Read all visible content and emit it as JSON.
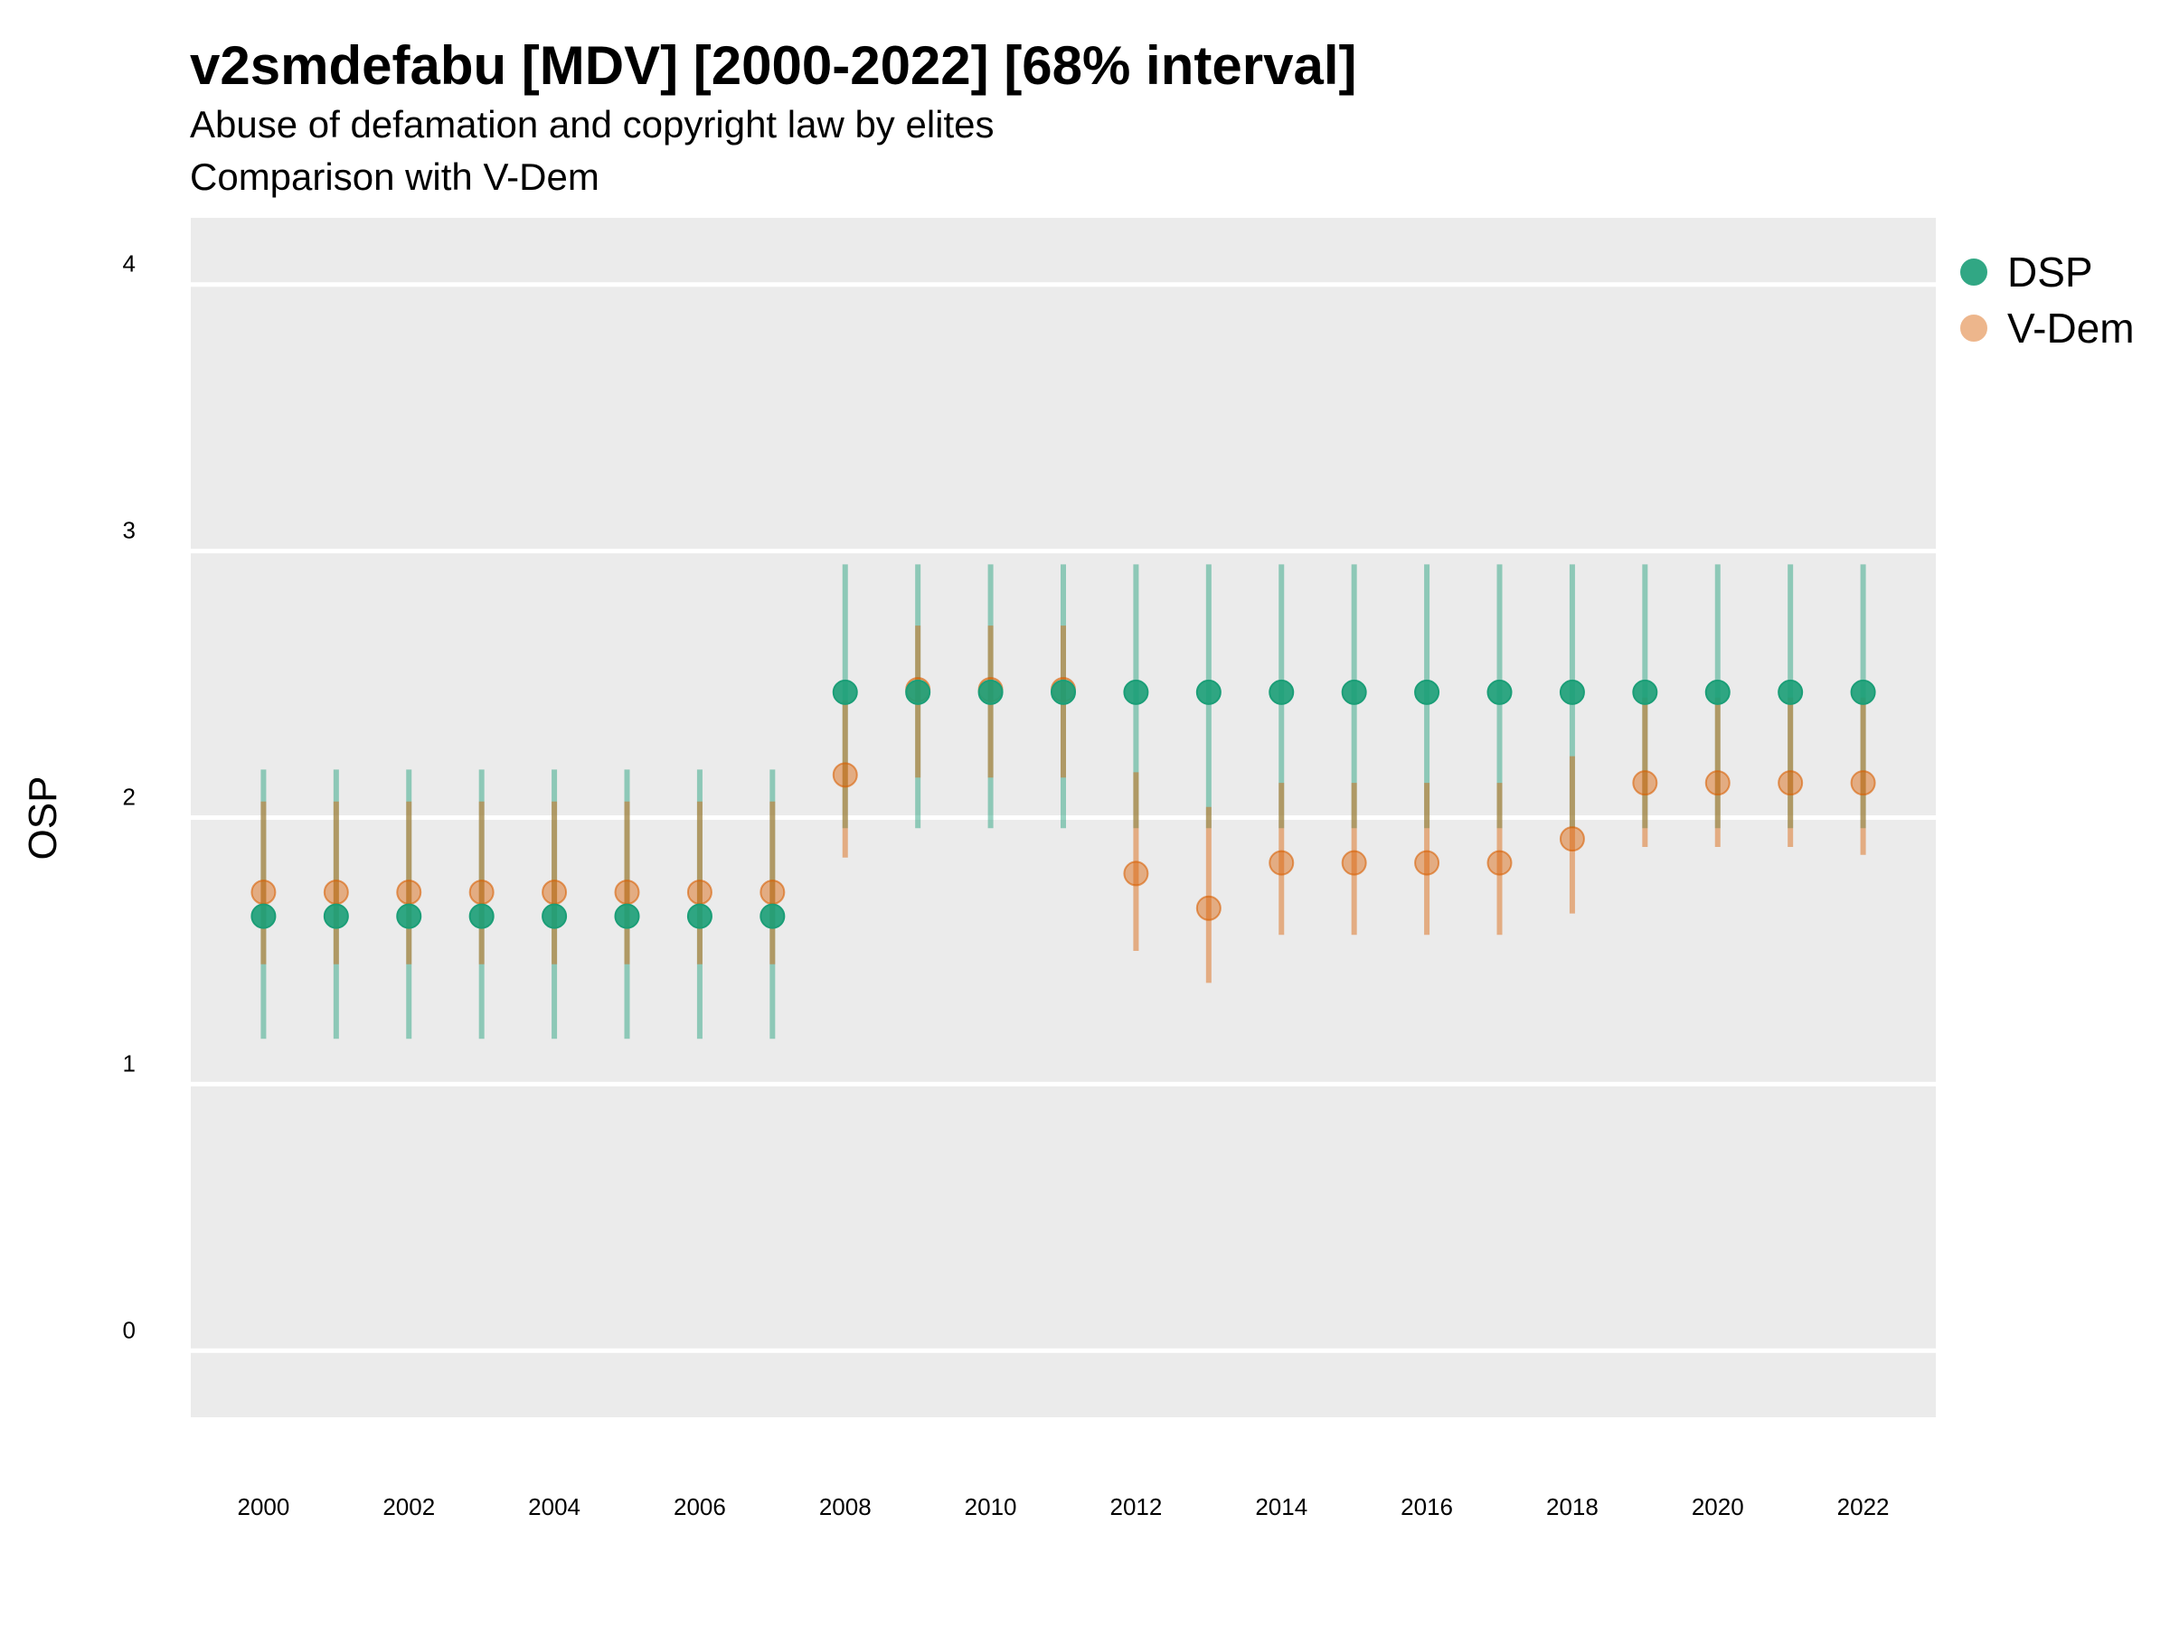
{
  "chart_data": {
    "type": "scatter",
    "title": "v2smdefabu [MDV] [2000-2022] [68% interval]",
    "subtitle": [
      "Abuse of defamation and copyright law by elites",
      "Comparison with V-Dem"
    ],
    "xlabel": "",
    "ylabel": "OSP",
    "ylim": [
      -0.25,
      4.25
    ],
    "yticks": [
      0,
      1,
      2,
      3,
      4
    ],
    "xlim": [
      1999.0,
      2023.0
    ],
    "xticks": [
      2000,
      2002,
      2004,
      2006,
      2008,
      2010,
      2012,
      2014,
      2016,
      2018,
      2020,
      2022
    ],
    "grid": true,
    "legend_position": "right",
    "x": [
      2000,
      2001,
      2002,
      2003,
      2004,
      2005,
      2006,
      2007,
      2008,
      2009,
      2010,
      2011,
      2012,
      2013,
      2014,
      2015,
      2016,
      2017,
      2018,
      2019,
      2020,
      2021,
      2022
    ],
    "series": [
      {
        "name": "DSP",
        "color": "#1b9e77",
        "values": [
          1.63,
          1.63,
          1.63,
          1.63,
          1.63,
          1.63,
          1.63,
          1.63,
          2.47,
          2.47,
          2.47,
          2.47,
          2.47,
          2.47,
          2.47,
          2.47,
          2.47,
          2.47,
          2.47,
          2.47,
          2.47,
          2.47,
          2.47
        ],
        "lower": [
          1.17,
          1.17,
          1.17,
          1.17,
          1.17,
          1.17,
          1.17,
          1.17,
          1.96,
          1.96,
          1.96,
          1.96,
          1.96,
          1.96,
          1.96,
          1.96,
          1.96,
          1.96,
          1.96,
          1.96,
          1.96,
          1.96,
          1.96
        ],
        "upper": [
          2.18,
          2.18,
          2.18,
          2.18,
          2.18,
          2.18,
          2.18,
          2.18,
          2.95,
          2.95,
          2.95,
          2.95,
          2.95,
          2.95,
          2.95,
          2.95,
          2.95,
          2.95,
          2.95,
          2.95,
          2.95,
          2.95,
          2.95
        ]
      },
      {
        "name": "V-Dem",
        "color": "#d95f02",
        "values": [
          1.72,
          1.72,
          1.72,
          1.72,
          1.72,
          1.72,
          1.72,
          1.72,
          2.16,
          2.48,
          2.48,
          2.48,
          1.79,
          1.66,
          1.83,
          1.83,
          1.83,
          1.83,
          1.92,
          2.13,
          2.13,
          2.13,
          2.13
        ],
        "lower": [
          1.45,
          1.45,
          1.45,
          1.45,
          1.45,
          1.45,
          1.45,
          1.45,
          1.85,
          2.15,
          2.15,
          2.15,
          1.5,
          1.38,
          1.56,
          1.56,
          1.56,
          1.56,
          1.64,
          1.89,
          1.89,
          1.89,
          1.86
        ],
        "upper": [
          2.06,
          2.06,
          2.06,
          2.06,
          2.06,
          2.06,
          2.06,
          2.06,
          2.44,
          2.72,
          2.72,
          2.72,
          2.17,
          2.04,
          2.13,
          2.13,
          2.13,
          2.13,
          2.23,
          2.45,
          2.45,
          2.45,
          2.45
        ]
      }
    ]
  },
  "legend": {
    "items": [
      {
        "label": "DSP",
        "color": "#1b9e77"
      },
      {
        "label": "V-Dem",
        "color": "#d95f02"
      }
    ]
  }
}
